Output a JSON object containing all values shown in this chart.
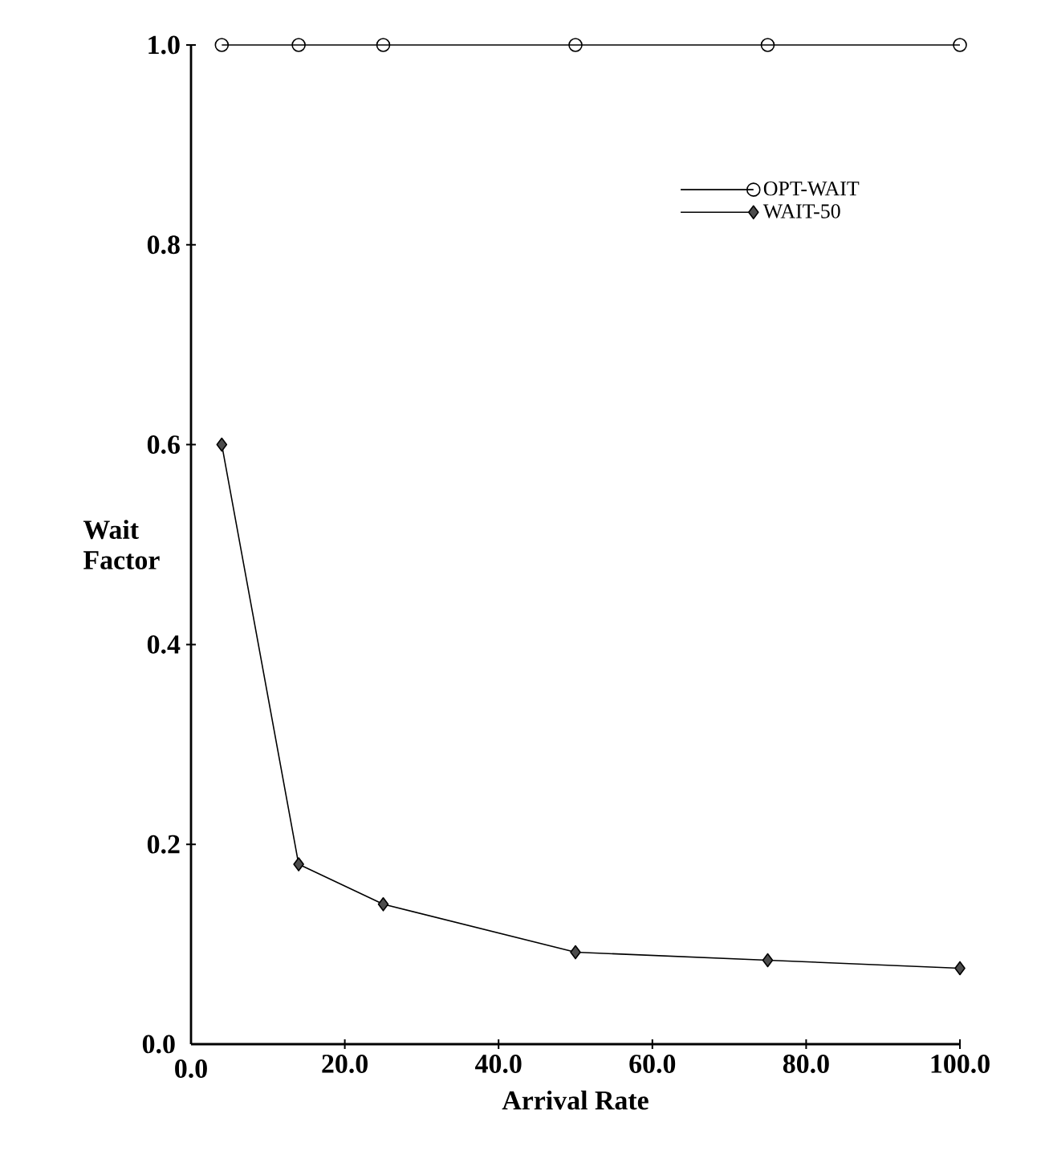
{
  "chart_data": {
    "type": "line",
    "xlabel": "Arrival Rate",
    "ylabel": "Wait Factor",
    "x": [
      4,
      14,
      25,
      50,
      75,
      100
    ],
    "series": [
      {
        "name": "OPT-WAIT",
        "color": "#000000",
        "marker": "circle",
        "values": [
          1.0,
          1.0,
          1.0,
          1.0,
          1.0,
          1.0
        ]
      },
      {
        "name": "WAIT-50",
        "color": "#000000",
        "marker": "diamond",
        "values": [
          0.6,
          0.18,
          0.14,
          0.092,
          0.084,
          0.076
        ]
      }
    ],
    "xlim": [
      0,
      100
    ],
    "xticks": [
      {
        "value": 0,
        "label": "0.0"
      },
      {
        "value": 20,
        "label": "20.0"
      },
      {
        "value": 40,
        "label": "40.0"
      },
      {
        "value": 60,
        "label": "60.0"
      },
      {
        "value": 80,
        "label": "80.0"
      },
      {
        "value": 100,
        "label": "100.0"
      }
    ],
    "ylim": [
      0,
      1
    ],
    "yticks": [
      {
        "value": 0,
        "label": "0.0"
      },
      {
        "value": 0.2,
        "label": "0.2"
      },
      {
        "value": 0.4,
        "label": "0.4"
      },
      {
        "value": 0.6,
        "label": "0.6"
      },
      {
        "value": 0.8,
        "label": "0.8"
      },
      {
        "value": 1,
        "label": "1.0"
      }
    ],
    "legend": "top right",
    "grid": false,
    "line_style": "solid"
  }
}
